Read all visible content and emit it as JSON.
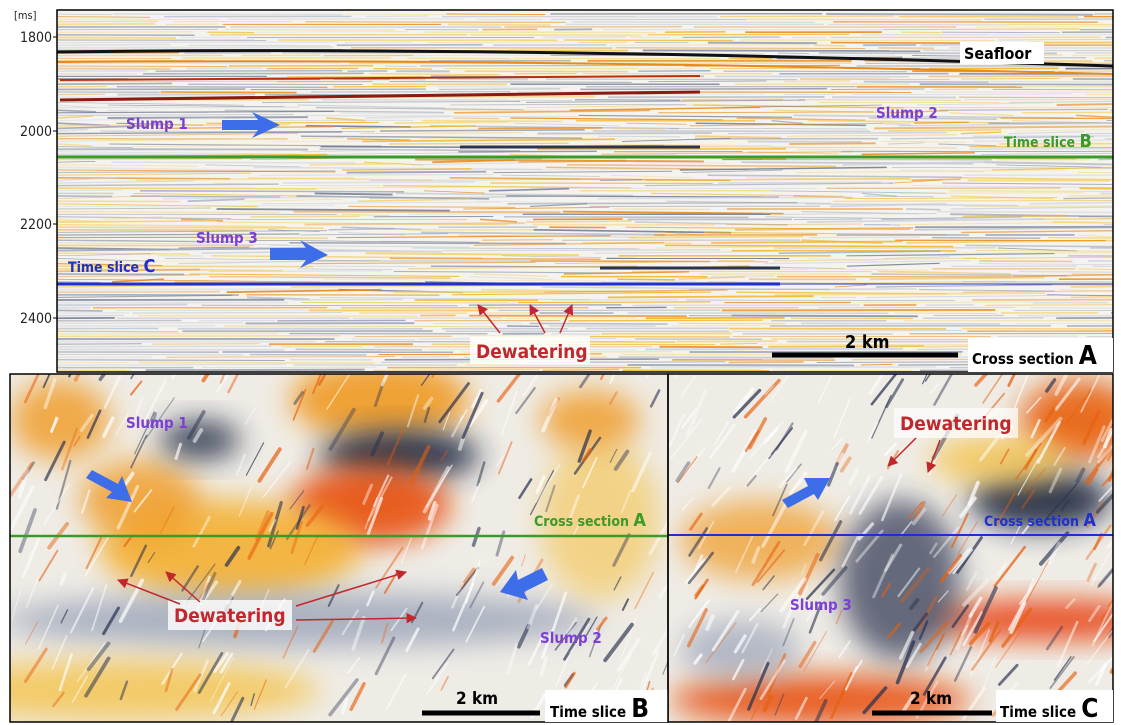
{
  "panel_a": {
    "unit": "[ms]",
    "ticks": [
      1800,
      2000,
      2200,
      2400
    ],
    "seafloor": "Seafloor",
    "slump_1": "Slump 1",
    "slump_2": "Slump 2",
    "slump_3": "Slump 3",
    "time_slice_b": {
      "label": "Time slice",
      "letter": "B"
    },
    "time_slice_c": {
      "label": "Time slice",
      "letter": "C"
    },
    "dewatering": "Dewatering",
    "scale": "2 km",
    "panel_label": {
      "label": "Cross section",
      "letter": "A"
    }
  },
  "panel_b": {
    "slump_1": "Slump 1",
    "cross_section": {
      "label": "Cross section",
      "letter": "A"
    },
    "dewatering": "Dewatering",
    "slump_2": "Slump 2",
    "scale": "2 km",
    "panel_label": {
      "label": "Time slice",
      "letter": "B"
    }
  },
  "panel_c": {
    "dewatering": "Dewatering",
    "cross_section": {
      "label": "Cross section",
      "letter": "A"
    },
    "slump_3": "Slump 3",
    "scale": "2 km",
    "panel_label": {
      "label": "Time slice",
      "letter": "C"
    }
  }
}
